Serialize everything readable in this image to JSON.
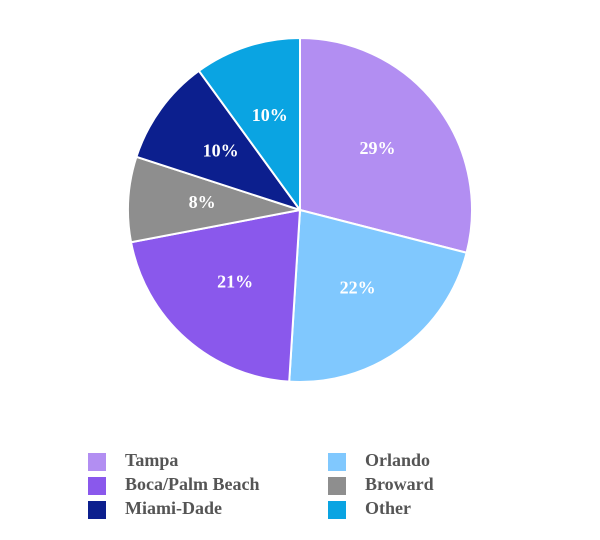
{
  "chart_data": {
    "type": "pie",
    "categories": [
      "Tampa",
      "Orlando",
      "Boca/Palm Beach",
      "Broward",
      "Miami-Dade",
      "Other"
    ],
    "values": [
      29,
      22,
      21,
      8,
      10,
      10
    ],
    "value_labels": [
      "29%",
      "22%",
      "21%",
      "8%",
      "10%",
      "10%"
    ],
    "colors": [
      "#b28ef2",
      "#80c8fe",
      "#8a58ec",
      "#8e8e8e",
      "#0c1f8e",
      "#0aa4e2"
    ],
    "legend": "bottom"
  }
}
